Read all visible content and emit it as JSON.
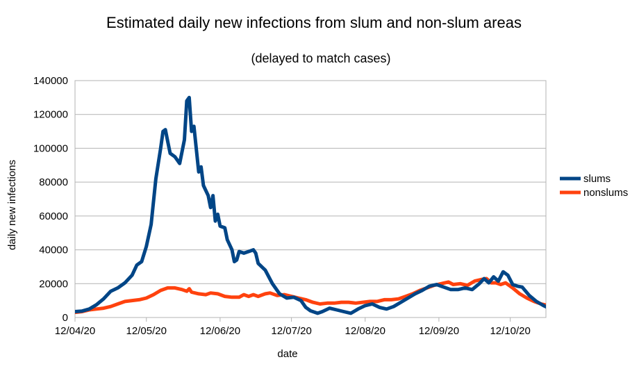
{
  "chart_data": {
    "type": "line",
    "title": "Estimated daily new infections from slum and non-slum areas",
    "subtitle": "(delayed to match cases)",
    "xlabel": "date",
    "ylabel": "daily new infections",
    "x_ticks": [
      "12/04/20",
      "12/05/20",
      "12/06/20",
      "12/07/20",
      "12/08/20",
      "12/09/20",
      "12/10/20"
    ],
    "y_ticks": [
      "0",
      "20000",
      "40000",
      "60000",
      "80000",
      "100000",
      "120000",
      "140000"
    ],
    "ylim": [
      0,
      140000
    ],
    "xlim": [
      "2020-04-12",
      "2020-10-27"
    ],
    "grid": "horizontal",
    "legend_position": "right",
    "series": [
      {
        "name": "slums",
        "color": "#004586",
        "points": [
          [
            "2020-04-12",
            3500
          ],
          [
            "2020-04-15",
            3800
          ],
          [
            "2020-04-18",
            5000
          ],
          [
            "2020-04-21",
            7500
          ],
          [
            "2020-04-24",
            11000
          ],
          [
            "2020-04-27",
            15500
          ],
          [
            "2020-04-30",
            17500
          ],
          [
            "2020-05-03",
            20500
          ],
          [
            "2020-05-06",
            25000
          ],
          [
            "2020-05-08",
            31000
          ],
          [
            "2020-05-10",
            33000
          ],
          [
            "2020-05-12",
            42000
          ],
          [
            "2020-05-14",
            55000
          ],
          [
            "2020-05-16",
            82000
          ],
          [
            "2020-05-18",
            100000
          ],
          [
            "2020-05-19",
            110000
          ],
          [
            "2020-05-20",
            111000
          ],
          [
            "2020-05-21",
            104000
          ],
          [
            "2020-05-22",
            97000
          ],
          [
            "2020-05-24",
            95000
          ],
          [
            "2020-05-26",
            91000
          ],
          [
            "2020-05-28",
            105000
          ],
          [
            "2020-05-29",
            128000
          ],
          [
            "2020-05-30",
            130000
          ],
          [
            "2020-05-31",
            110000
          ],
          [
            "2020-06-01",
            113000
          ],
          [
            "2020-06-03",
            86000
          ],
          [
            "2020-06-04",
            89000
          ],
          [
            "2020-06-05",
            78000
          ],
          [
            "2020-06-07",
            72000
          ],
          [
            "2020-06-08",
            65000
          ],
          [
            "2020-06-09",
            72000
          ],
          [
            "2020-06-10",
            57000
          ],
          [
            "2020-06-11",
            61000
          ],
          [
            "2020-06-12",
            54000
          ],
          [
            "2020-06-14",
            53000
          ],
          [
            "2020-06-15",
            46000
          ],
          [
            "2020-06-17",
            40000
          ],
          [
            "2020-06-18",
            33000
          ],
          [
            "2020-06-19",
            34000
          ],
          [
            "2020-06-20",
            39000
          ],
          [
            "2020-06-22",
            38000
          ],
          [
            "2020-06-24",
            39000
          ],
          [
            "2020-06-26",
            40000
          ],
          [
            "2020-06-27",
            38000
          ],
          [
            "2020-06-28",
            32000
          ],
          [
            "2020-07-01",
            28000
          ],
          [
            "2020-07-04",
            20000
          ],
          [
            "2020-07-07",
            14000
          ],
          [
            "2020-07-10",
            11500
          ],
          [
            "2020-07-13",
            12000
          ],
          [
            "2020-07-16",
            10000
          ],
          [
            "2020-07-18",
            6000
          ],
          [
            "2020-07-20",
            4000
          ],
          [
            "2020-07-23",
            2500
          ],
          [
            "2020-07-25",
            3500
          ],
          [
            "2020-07-28",
            5500
          ],
          [
            "2020-07-31",
            4500
          ],
          [
            "2020-08-03",
            3500
          ],
          [
            "2020-08-06",
            2500
          ],
          [
            "2020-08-09",
            5000
          ],
          [
            "2020-08-12",
            7000
          ],
          [
            "2020-08-15",
            8000
          ],
          [
            "2020-08-18",
            6000
          ],
          [
            "2020-08-21",
            5000
          ],
          [
            "2020-08-24",
            6500
          ],
          [
            "2020-08-27",
            9000
          ],
          [
            "2020-08-30",
            11500
          ],
          [
            "2020-09-02",
            14000
          ],
          [
            "2020-09-05",
            16000
          ],
          [
            "2020-09-08",
            18500
          ],
          [
            "2020-09-11",
            19500
          ],
          [
            "2020-09-14",
            18000
          ],
          [
            "2020-09-17",
            16500
          ],
          [
            "2020-09-20",
            16500
          ],
          [
            "2020-09-23",
            17500
          ],
          [
            "2020-09-26",
            16500
          ],
          [
            "2020-09-29",
            20000
          ],
          [
            "2020-10-01",
            23000
          ],
          [
            "2020-10-03",
            20500
          ],
          [
            "2020-10-05",
            24000
          ],
          [
            "2020-10-07",
            21500
          ],
          [
            "2020-10-09",
            27000
          ],
          [
            "2020-10-11",
            25000
          ],
          [
            "2020-10-13",
            19500
          ],
          [
            "2020-10-15",
            18500
          ],
          [
            "2020-10-17",
            18000
          ],
          [
            "2020-10-20",
            13000
          ],
          [
            "2020-10-23",
            9500
          ],
          [
            "2020-10-26",
            7000
          ],
          [
            "2020-10-29",
            5000
          ],
          [
            "2020-11-01",
            3500
          ],
          [
            "2020-11-04",
            4000
          ]
        ]
      },
      {
        "name": "nonslums",
        "color": "#ff420e",
        "points": [
          [
            "2020-04-12",
            3000
          ],
          [
            "2020-04-15",
            3500
          ],
          [
            "2020-04-18",
            4500
          ],
          [
            "2020-04-21",
            5000
          ],
          [
            "2020-04-24",
            5500
          ],
          [
            "2020-04-27",
            6500
          ],
          [
            "2020-04-30",
            8000
          ],
          [
            "2020-05-03",
            9500
          ],
          [
            "2020-05-06",
            10000
          ],
          [
            "2020-05-09",
            10500
          ],
          [
            "2020-05-12",
            11500
          ],
          [
            "2020-05-15",
            13500
          ],
          [
            "2020-05-18",
            16000
          ],
          [
            "2020-05-21",
            17500
          ],
          [
            "2020-05-24",
            17500
          ],
          [
            "2020-05-27",
            16500
          ],
          [
            "2020-05-29",
            15500
          ],
          [
            "2020-05-30",
            17000
          ],
          [
            "2020-05-31",
            15000
          ],
          [
            "2020-06-03",
            14000
          ],
          [
            "2020-06-06",
            13500
          ],
          [
            "2020-06-08",
            14500
          ],
          [
            "2020-06-11",
            14000
          ],
          [
            "2020-06-14",
            12500
          ],
          [
            "2020-06-17",
            12000
          ],
          [
            "2020-06-20",
            12000
          ],
          [
            "2020-06-22",
            13500
          ],
          [
            "2020-06-24",
            12500
          ],
          [
            "2020-06-26",
            13500
          ],
          [
            "2020-06-28",
            12500
          ],
          [
            "2020-07-01",
            14000
          ],
          [
            "2020-07-03",
            14500
          ],
          [
            "2020-07-06",
            13000
          ],
          [
            "2020-07-09",
            13500
          ],
          [
            "2020-07-12",
            12500
          ],
          [
            "2020-07-15",
            11500
          ],
          [
            "2020-07-18",
            10500
          ],
          [
            "2020-07-21",
            9000
          ],
          [
            "2020-07-24",
            8000
          ],
          [
            "2020-07-27",
            8500
          ],
          [
            "2020-07-30",
            8500
          ],
          [
            "2020-08-02",
            9000
          ],
          [
            "2020-08-05",
            9000
          ],
          [
            "2020-08-08",
            8500
          ],
          [
            "2020-08-11",
            9000
          ],
          [
            "2020-08-14",
            9500
          ],
          [
            "2020-08-17",
            9500
          ],
          [
            "2020-08-20",
            10500
          ],
          [
            "2020-08-23",
            10500
          ],
          [
            "2020-08-26",
            11000
          ],
          [
            "2020-08-29",
            12500
          ],
          [
            "2020-09-01",
            14000
          ],
          [
            "2020-09-04",
            16000
          ],
          [
            "2020-09-07",
            17500
          ],
          [
            "2020-09-10",
            19000
          ],
          [
            "2020-09-13",
            20000
          ],
          [
            "2020-09-16",
            21000
          ],
          [
            "2020-09-18",
            19500
          ],
          [
            "2020-09-21",
            20000
          ],
          [
            "2020-09-24",
            19000
          ],
          [
            "2020-09-27",
            21500
          ],
          [
            "2020-09-30",
            22500
          ],
          [
            "2020-10-02",
            23000
          ],
          [
            "2020-10-04",
            20500
          ],
          [
            "2020-10-06",
            20500
          ],
          [
            "2020-10-08",
            19500
          ],
          [
            "2020-10-10",
            20500
          ],
          [
            "2020-10-13",
            17500
          ],
          [
            "2020-10-16",
            14000
          ],
          [
            "2020-10-19",
            11500
          ],
          [
            "2020-10-22",
            9500
          ],
          [
            "2020-10-25",
            8000
          ],
          [
            "2020-10-28",
            7000
          ],
          [
            "2020-10-31",
            6500
          ],
          [
            "2020-11-04",
            6500
          ]
        ]
      }
    ]
  }
}
